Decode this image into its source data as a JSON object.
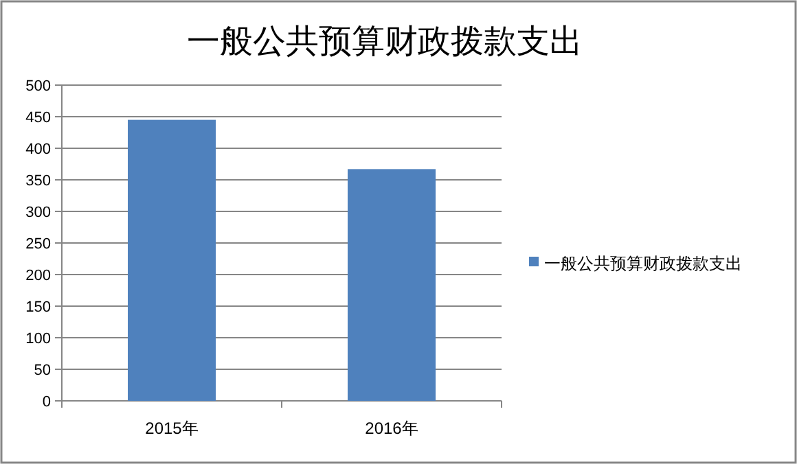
{
  "chart_data": {
    "type": "bar",
    "title": "一般公共预算财政拨款支出",
    "categories": [
      "2015年",
      "2016年"
    ],
    "series": [
      {
        "name": "一般公共预算财政拨款支出",
        "color": "#4f81bd",
        "values": [
          445,
          367
        ]
      }
    ],
    "ylim": [
      0,
      500
    ],
    "yticks": [
      0,
      50,
      100,
      150,
      200,
      250,
      300,
      350,
      400,
      450,
      500
    ],
    "grid": "y",
    "legend": "right"
  }
}
